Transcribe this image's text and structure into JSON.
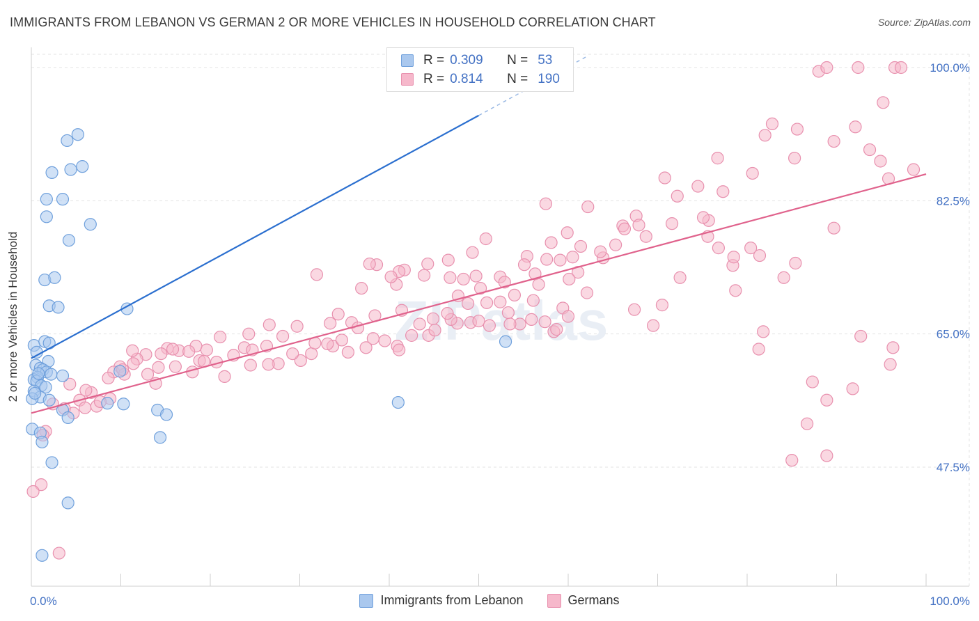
{
  "title": "IMMIGRANTS FROM LEBANON VS GERMAN 2 OR MORE VEHICLES IN HOUSEHOLD CORRELATION CHART",
  "source": "Source: ZipAtlas.com",
  "watermark": "ZIPatlas",
  "legend": {
    "rows": [
      {
        "r_label": "R =",
        "r_value": "0.309",
        "n_label": "N =",
        "n_value": "53"
      },
      {
        "r_label": "R =",
        "r_value": "0.814",
        "n_label": "N =",
        "n_value": "190"
      }
    ]
  },
  "colors": {
    "blue_fill": "#aac8ee",
    "blue_stroke": "#6fa0dc",
    "blue_line": "#2b6fcf",
    "pink_fill": "#f6b8cb",
    "pink_stroke": "#e890ae",
    "pink_line": "#e0628c",
    "tick_text": "#4472c4",
    "grid": "#e3e3e3"
  },
  "chart_data": {
    "type": "scatter",
    "title": "IMMIGRANTS FROM LEBANON VS GERMAN 2 OR MORE VEHICLES IN HOUSEHOLD CORRELATION CHART",
    "xlabel": "",
    "ylabel": "2 or more Vehicles in Household",
    "xlim": [
      0,
      100
    ],
    "ylim": [
      32,
      102
    ],
    "x_tick_labels": [
      "0.0%",
      "100.0%"
    ],
    "y_ticks": [
      47.5,
      65.0,
      82.5,
      100.0
    ],
    "y_tick_labels": [
      "47.5%",
      "65.0%",
      "82.5%",
      "100.0%"
    ],
    "grid": true,
    "legend_position": "top-center",
    "series": [
      {
        "name": "Immigrants from Lebanon",
        "color": "#aac8ee",
        "points": [
          [
            5.2,
            91.2
          ],
          [
            4,
            90.4
          ],
          [
            2.3,
            86.2
          ],
          [
            5.7,
            87
          ],
          [
            4.4,
            86.6
          ],
          [
            1.7,
            82.7
          ],
          [
            3.5,
            82.7
          ],
          [
            1.7,
            80.4
          ],
          [
            6.6,
            79.4
          ],
          [
            4.2,
            77.3
          ],
          [
            1.5,
            72.1
          ],
          [
            2.6,
            72.4
          ],
          [
            2.0,
            68.7
          ],
          [
            3.0,
            68.5
          ],
          [
            10.7,
            68.3
          ],
          [
            0.3,
            63.5
          ],
          [
            1.5,
            64.0
          ],
          [
            2.0,
            63.8
          ],
          [
            0.6,
            62.6
          ],
          [
            1.9,
            61.4
          ],
          [
            0.5,
            60.9
          ],
          [
            1.0,
            60.5
          ],
          [
            1.3,
            60.3
          ],
          [
            1.7,
            60.0
          ],
          [
            2.2,
            59.7
          ],
          [
            0.7,
            59.3
          ],
          [
            0.3,
            59.0
          ],
          [
            3.5,
            59.5
          ],
          [
            0.6,
            58.8
          ],
          [
            1.1,
            58.2
          ],
          [
            1.6,
            58.0
          ],
          [
            0.3,
            57.5
          ],
          [
            9.9,
            60.1
          ],
          [
            1.0,
            56.7
          ],
          [
            2.0,
            56.3
          ],
          [
            10.3,
            55.8
          ],
          [
            8.5,
            55.9
          ],
          [
            14.1,
            55.0
          ],
          [
            3.5,
            55.0
          ],
          [
            15.1,
            54.4
          ],
          [
            4.1,
            54.0
          ],
          [
            0.1,
            52.5
          ],
          [
            1.0,
            52.0
          ],
          [
            1.2,
            50.8
          ],
          [
            14.4,
            51.4
          ],
          [
            2.3,
            48.1
          ],
          [
            4.1,
            42.8
          ],
          [
            1.2,
            35.9
          ],
          [
            0.1,
            56.5
          ],
          [
            0.4,
            57.2
          ],
          [
            0.8,
            59.8
          ],
          [
            41,
            56
          ],
          [
            53,
            64
          ]
        ],
        "trend": {
          "x0": 0,
          "y0": 61.8,
          "x1": 50,
          "y1": 93.7,
          "dashed_to_x": 62,
          "dashed_to_y": 101.4
        }
      },
      {
        "name": "Germans",
        "color": "#f6b8cb",
        "points": [
          [
            88,
            99.5
          ],
          [
            88.9,
            100
          ],
          [
            92.4,
            100
          ],
          [
            96.5,
            100
          ],
          [
            97.2,
            100
          ],
          [
            95.2,
            95.4
          ],
          [
            82.8,
            92.6
          ],
          [
            92.1,
            92.2
          ],
          [
            85.6,
            91.9
          ],
          [
            82,
            91.1
          ],
          [
            89.7,
            90.3
          ],
          [
            93.7,
            89.2
          ],
          [
            76.7,
            88.1
          ],
          [
            85.3,
            88.1
          ],
          [
            94.9,
            87.7
          ],
          [
            98.6,
            86.6
          ],
          [
            80.6,
            86.1
          ],
          [
            95.8,
            85.4
          ],
          [
            74.5,
            84.4
          ],
          [
            77.3,
            83.7
          ],
          [
            72.2,
            83.1
          ],
          [
            70.8,
            85.5
          ],
          [
            71.6,
            79.5
          ],
          [
            75.7,
            79.9
          ],
          [
            75.1,
            80.3
          ],
          [
            67.6,
            80.5
          ],
          [
            62.2,
            81.7
          ],
          [
            57.5,
            82.1
          ],
          [
            66.1,
            79.2
          ],
          [
            67.9,
            79.3
          ],
          [
            89.7,
            78.9
          ],
          [
            75.6,
            77.8
          ],
          [
            68.7,
            77.8
          ],
          [
            66.3,
            78.8
          ],
          [
            59.9,
            78.3
          ],
          [
            61.4,
            76.5
          ],
          [
            65.3,
            76.7
          ],
          [
            58.1,
            77.0
          ],
          [
            50.8,
            77.5
          ],
          [
            49.3,
            75.7
          ],
          [
            60.5,
            75.1
          ],
          [
            63.9,
            75.0
          ],
          [
            57.6,
            74.8
          ],
          [
            55.4,
            75.2
          ],
          [
            78.4,
            74.0
          ],
          [
            76.8,
            76.3
          ],
          [
            78.5,
            75.1
          ],
          [
            59.1,
            74.7
          ],
          [
            61.1,
            73.1
          ],
          [
            46.6,
            74.7
          ],
          [
            44.3,
            74.2
          ],
          [
            38.6,
            74.1
          ],
          [
            41.7,
            73.4
          ],
          [
            37.8,
            74.2
          ],
          [
            41.1,
            73.2
          ],
          [
            31.9,
            72.8
          ],
          [
            48.3,
            72.2
          ],
          [
            46.8,
            72.4
          ],
          [
            49.7,
            72.6
          ],
          [
            52.4,
            72.5
          ],
          [
            47.7,
            70.0
          ],
          [
            52.9,
            71.8
          ],
          [
            56.3,
            72.9
          ],
          [
            60.1,
            72.2
          ],
          [
            55.1,
            74.1
          ],
          [
            50.2,
            71.0
          ],
          [
            40.8,
            71.5
          ],
          [
            36.9,
            71.0
          ],
          [
            40.2,
            72.5
          ],
          [
            43.9,
            72.7
          ],
          [
            56.7,
            71.5
          ],
          [
            54.0,
            70.1
          ],
          [
            63.6,
            75.8
          ],
          [
            72.5,
            72.4
          ],
          [
            78.7,
            70.7
          ],
          [
            84.1,
            72.4
          ],
          [
            85.4,
            74.3
          ],
          [
            80.4,
            76.3
          ],
          [
            81.4,
            75.3
          ],
          [
            70.5,
            68.8
          ],
          [
            67.4,
            68.2
          ],
          [
            59.4,
            68.4
          ],
          [
            56.1,
            69.4
          ],
          [
            52.4,
            69.2
          ],
          [
            47.6,
            66.4
          ],
          [
            44.9,
            67.0
          ],
          [
            41.4,
            68.1
          ],
          [
            38.4,
            67.4
          ],
          [
            35.8,
            66.5
          ],
          [
            34.3,
            67.6
          ],
          [
            33.4,
            66.4
          ],
          [
            29.7,
            66.0
          ],
          [
            26.6,
            66.2
          ],
          [
            24.3,
            65.0
          ],
          [
            21.1,
            64.6
          ],
          [
            18.4,
            63.4
          ],
          [
            16.5,
            62.8
          ],
          [
            15.2,
            63.1
          ],
          [
            14.5,
            62.4
          ],
          [
            12.8,
            62.3
          ],
          [
            11.8,
            61.7
          ],
          [
            11.3,
            62.8
          ],
          [
            9.9,
            60.7
          ],
          [
            9.2,
            60.0
          ],
          [
            8.6,
            59.2
          ],
          [
            6.7,
            57.3
          ],
          [
            5.4,
            56.3
          ],
          [
            7.3,
            55.5
          ],
          [
            6.0,
            55.3
          ],
          [
            4.7,
            54.6
          ],
          [
            3.7,
            55.2
          ],
          [
            2.4,
            55.8
          ],
          [
            1.6,
            52.2
          ],
          [
            1.3,
            51.7
          ],
          [
            1.1,
            45.2
          ],
          [
            0.2,
            44.3
          ],
          [
            3.1,
            36.2
          ],
          [
            19.6,
            62.9
          ],
          [
            22.6,
            62.2
          ],
          [
            24.5,
            60.9
          ],
          [
            27.6,
            61.1
          ],
          [
            30.1,
            61.5
          ],
          [
            31.3,
            62.4
          ],
          [
            33.7,
            63.4
          ],
          [
            35.4,
            62.6
          ],
          [
            37.4,
            63.2
          ],
          [
            39.5,
            64.1
          ],
          [
            40.9,
            63.4
          ],
          [
            42.5,
            64.8
          ],
          [
            44.4,
            64.8
          ],
          [
            46.9,
            66.9
          ],
          [
            49.1,
            66.5
          ],
          [
            50.0,
            66.7
          ],
          [
            51.2,
            66.1
          ],
          [
            53.3,
            67.8
          ],
          [
            54.6,
            66.3
          ],
          [
            55.9,
            66.9
          ],
          [
            57.4,
            66.6
          ],
          [
            58.4,
            65.3
          ],
          [
            60.0,
            67.3
          ],
          [
            28.1,
            64.7
          ],
          [
            26.3,
            63.4
          ],
          [
            23.8,
            63.2
          ],
          [
            20.7,
            61.3
          ],
          [
            18.8,
            61.5
          ],
          [
            17.6,
            62.7
          ],
          [
            15.8,
            63.0
          ],
          [
            14.2,
            60.6
          ],
          [
            13.0,
            59.7
          ],
          [
            10.4,
            59.7
          ],
          [
            8.8,
            56.5
          ],
          [
            7.7,
            56.1
          ],
          [
            4.3,
            58.4
          ],
          [
            6.1,
            57.6
          ],
          [
            10.2,
            60.3
          ],
          [
            11.4,
            61.1
          ],
          [
            13.9,
            58.5
          ],
          [
            16.1,
            60.7
          ],
          [
            18.0,
            60.0
          ],
          [
            19.3,
            61.4
          ],
          [
            21.6,
            59.4
          ],
          [
            24.7,
            62.9
          ],
          [
            26.5,
            61.0
          ],
          [
            29.2,
            62.4
          ],
          [
            31.7,
            63.8
          ],
          [
            33.1,
            63.7
          ],
          [
            34.7,
            64.2
          ],
          [
            36.5,
            65.8
          ],
          [
            38.2,
            64.4
          ],
          [
            41.1,
            62.9
          ],
          [
            43.4,
            66.3
          ],
          [
            45.1,
            65.5
          ],
          [
            46.5,
            67.7
          ],
          [
            48.8,
            69.0
          ],
          [
            50.9,
            69.1
          ],
          [
            53.5,
            66.3
          ],
          [
            58.7,
            65.6
          ],
          [
            62.1,
            70.4
          ],
          [
            69.5,
            66.1
          ],
          [
            87.3,
            58.7
          ],
          [
            88.9,
            56.3
          ],
          [
            86.7,
            53.2
          ],
          [
            88.9,
            49.0
          ],
          [
            85.0,
            48.4
          ],
          [
            96.3,
            63.2
          ],
          [
            92.7,
            64.7
          ],
          [
            91.8,
            57.8
          ],
          [
            96.0,
            61.0
          ],
          [
            81.8,
            65.3
          ],
          [
            81.3,
            63.0
          ]
        ],
        "trend": {
          "x0": 0,
          "y0": 54.6,
          "x1": 100,
          "y1": 86.0
        }
      }
    ]
  }
}
